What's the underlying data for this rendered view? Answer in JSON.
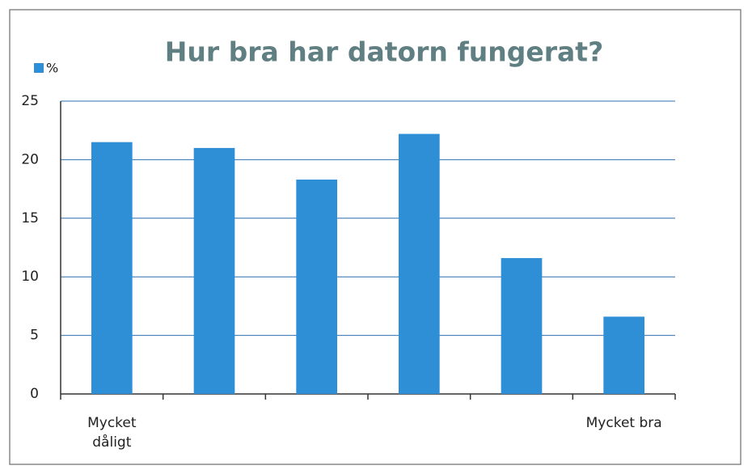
{
  "chart_data": {
    "type": "bar",
    "title": "Hur bra har datorn fungerat?",
    "categories": [
      "Mycket dåligt",
      null,
      null,
      null,
      null,
      "Mycket bra"
    ],
    "series": [
      {
        "name": "%",
        "color": "#2e8fd6",
        "values": [
          21.5,
          21,
          18.3,
          22.2,
          11.6,
          6.6
        ]
      }
    ],
    "ylim": [
      0,
      25
    ],
    "yticks": [
      0,
      5,
      10,
      15,
      20,
      25
    ],
    "grid": true,
    "legend": "top-left"
  }
}
